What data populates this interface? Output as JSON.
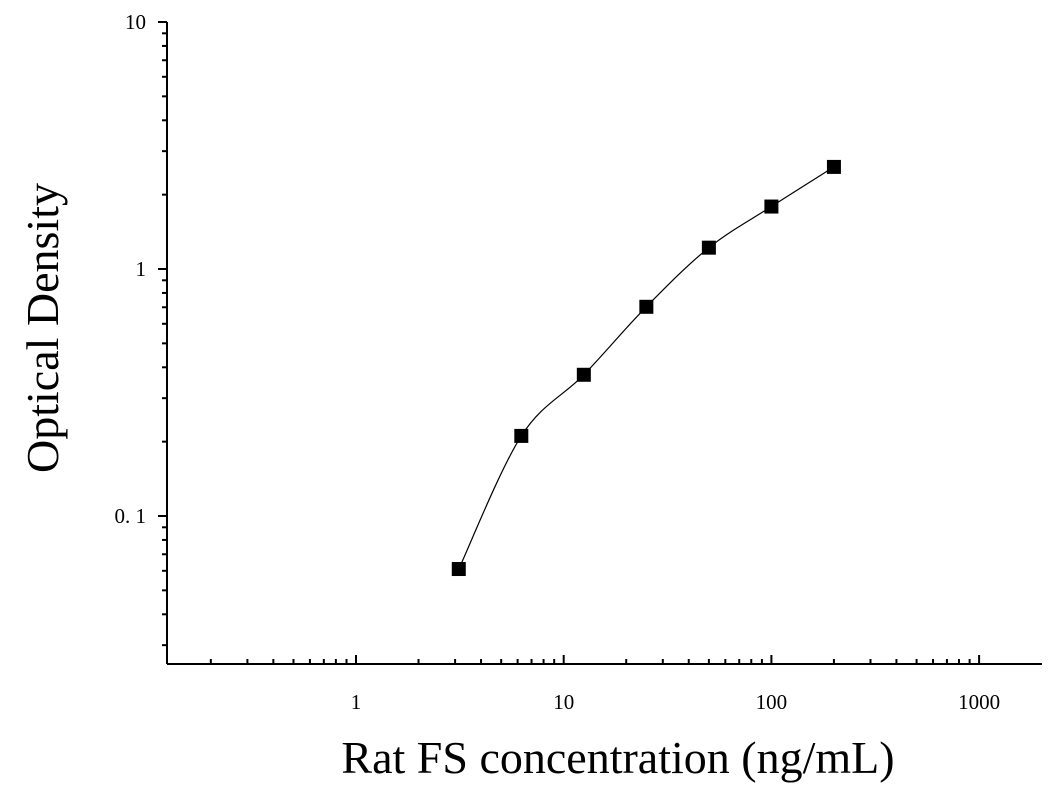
{
  "chart_data": {
    "type": "scatter",
    "xlabel": "Rat FS concentration (ng/mL)",
    "ylabel": "Optical Density",
    "x_scale": "log",
    "y_scale": "log",
    "xlim": [
      0.13,
      1200
    ],
    "ylim": [
      0.03,
      10
    ],
    "x_ticks": [
      {
        "value": 1,
        "label": "1"
      },
      {
        "value": 10,
        "label": "10"
      },
      {
        "value": 100,
        "label": "100"
      },
      {
        "value": 1000,
        "label": "1000"
      }
    ],
    "y_ticks": [
      {
        "value": 0.1,
        "label": "0. 1"
      },
      {
        "value": 1,
        "label": "1"
      },
      {
        "value": 10,
        "label": "10"
      }
    ],
    "grid": false,
    "legend": false,
    "series": [
      {
        "marker": "square",
        "color": "#000000",
        "x": [
          3.125,
          6.25,
          12.5,
          25,
          50,
          100,
          200
        ],
        "y": [
          0.061,
          0.211,
          0.373,
          0.703,
          1.22,
          1.79,
          2.59
        ],
        "fit_curve": true
      }
    ]
  }
}
